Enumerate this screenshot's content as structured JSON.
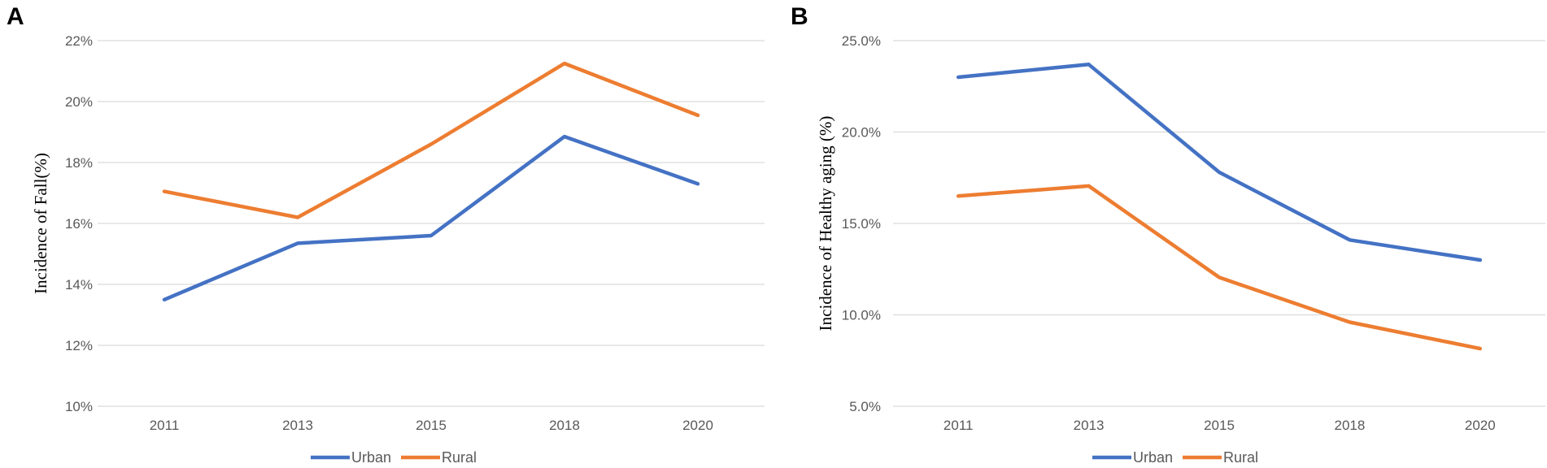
{
  "chart_data": [
    {
      "type": "line",
      "panel_label": "A",
      "categories": [
        "2011",
        "2013",
        "2015",
        "2018",
        "2020"
      ],
      "series": [
        {
          "name": "Urban",
          "color": "#4472C4",
          "values": [
            13.5,
            15.35,
            15.6,
            18.85,
            17.3
          ]
        },
        {
          "name": "Rural",
          "color": "#ED7D31",
          "values": [
            17.05,
            16.2,
            18.6,
            21.25,
            19.55
          ]
        }
      ],
      "yticks": [
        10,
        12,
        14,
        16,
        18,
        20,
        22
      ],
      "ytick_labels": [
        "10%",
        "12%",
        "14%",
        "16%",
        "18%",
        "20%",
        "22%"
      ],
      "ylim": [
        10,
        22
      ],
      "xlabel": "",
      "ylabel": "Incidence of Fall(%)",
      "legend": "bottom",
      "grid": true
    },
    {
      "type": "line",
      "panel_label": "B",
      "categories": [
        "2011",
        "2013",
        "2015",
        "2018",
        "2020"
      ],
      "series": [
        {
          "name": "Urban",
          "color": "#4472C4",
          "values": [
            23.0,
            23.7,
            17.8,
            14.1,
            13.0
          ]
        },
        {
          "name": "Rural",
          "color": "#ED7D31",
          "values": [
            16.5,
            17.05,
            12.05,
            9.6,
            8.15
          ]
        }
      ],
      "yticks": [
        5,
        10,
        15,
        20,
        25
      ],
      "ytick_labels": [
        "5.0%",
        "10.0%",
        "15.0%",
        "20.0%",
        "25.0%"
      ],
      "ylim": [
        5,
        25
      ],
      "xlabel": "",
      "ylabel": "Incidence of Healthy aging (%)",
      "legend": "bottom",
      "grid": true
    }
  ]
}
